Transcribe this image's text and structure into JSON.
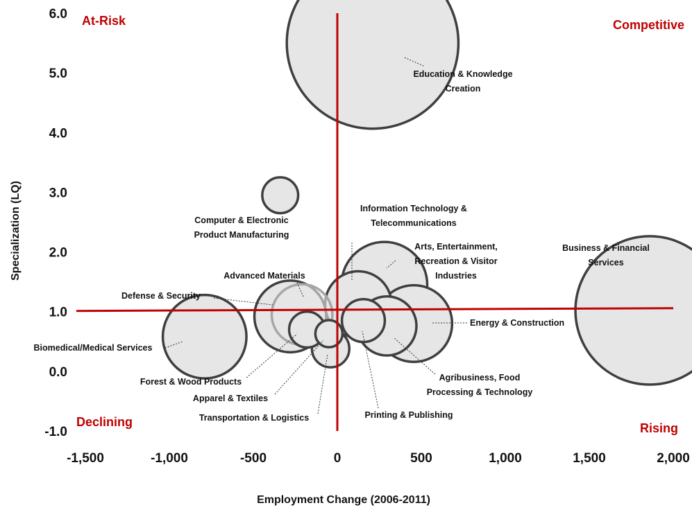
{
  "chart_data": {
    "type": "scatter",
    "title": "",
    "xlabel": "Employment Change (2006-2011)",
    "ylabel": "Specialization (LQ)",
    "xlim": [
      -1500,
      2000
    ],
    "ylim": [
      -1.0,
      6.0
    ],
    "xticks": [
      "-1,500",
      "-1,000",
      "-500",
      "0",
      "500",
      "1,000",
      "1,500",
      "2,000"
    ],
    "yticks": [
      "-1.0",
      "0.0",
      "1.0",
      "2.0",
      "3.0",
      "4.0",
      "5.0",
      "6.0"
    ],
    "grid": false,
    "quadrants": {
      "top_left": "At-Risk",
      "top_right": "Competitive",
      "bottom_left": "Declining",
      "bottom_right": "Rising"
    },
    "colors": {
      "quadrant_text": "#c00000",
      "reference_lines": "#c00000",
      "bubble_fill": "#e6e6e6",
      "bubble_stroke": "#3f3f3f"
    },
    "points": [
      {
        "label": [
          "Education & Knowledge",
          "Creation"
        ],
        "x": 210,
        "y": 5.5,
        "size": 8000
      },
      {
        "label": [
          "Computer & Electronic",
          "Product Manufacturing"
        ],
        "x": -340,
        "y": 2.95,
        "size": 350
      },
      {
        "label": [
          "Information Technology &",
          "Telecommunications"
        ],
        "x": 125,
        "y": 1.12,
        "size": 1200
      },
      {
        "label": [
          "Arts, Entertainment,",
          "Recreation & Visitor",
          "Industries"
        ],
        "x": 280,
        "y": 1.45,
        "size": 2000
      },
      {
        "label": [
          "Business & Financial",
          "Services"
        ],
        "x": 1860,
        "y": 1.02,
        "size": 6000
      },
      {
        "label": [
          "Advanced Materials"
        ],
        "x": -210,
        "y": 0.95,
        "size": 1000
      },
      {
        "label": [
          "Defense & Security"
        ],
        "x": -280,
        "y": 0.92,
        "size": 1400
      },
      {
        "label": [
          "Biomedical/Medical Services"
        ],
        "x": -790,
        "y": 0.58,
        "size": 1900
      },
      {
        "label": [
          "Forest & Wood Products"
        ],
        "x": -180,
        "y": 0.7,
        "size": 350
      },
      {
        "label": [
          "Apparel & Textiles"
        ],
        "x": -50,
        "y": 0.63,
        "size": 200
      },
      {
        "label": [
          "Transportation & Logistics"
        ],
        "x": -40,
        "y": 0.38,
        "size": 380
      },
      {
        "label": [
          "Printing & Publishing"
        ],
        "x": 155,
        "y": 0.85,
        "size": 500
      },
      {
        "label": [
          "Agribusiness, Food",
          "Processing & Technology"
        ],
        "x": 295,
        "y": 0.76,
        "size": 950
      },
      {
        "label": [
          "Energy & Construction"
        ],
        "x": 455,
        "y": 0.8,
        "size": 1600
      }
    ]
  }
}
